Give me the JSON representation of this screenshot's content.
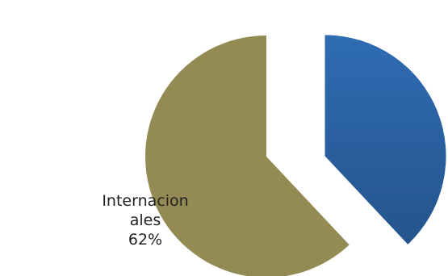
{
  "chart_data": {
    "type": "pie",
    "title": "",
    "slices": [
      {
        "label": "",
        "value": 38,
        "value_label": "",
        "color": "#2F6CB3",
        "color_dark": "#24548C",
        "exploded": true
      },
      {
        "label": "Internacionales",
        "value": 62,
        "value_label": "62%",
        "color": "#948B54",
        "color_dark": "#948B54",
        "exploded": false
      }
    ],
    "start_angle_deg": 0,
    "direction": "clockwise"
  }
}
